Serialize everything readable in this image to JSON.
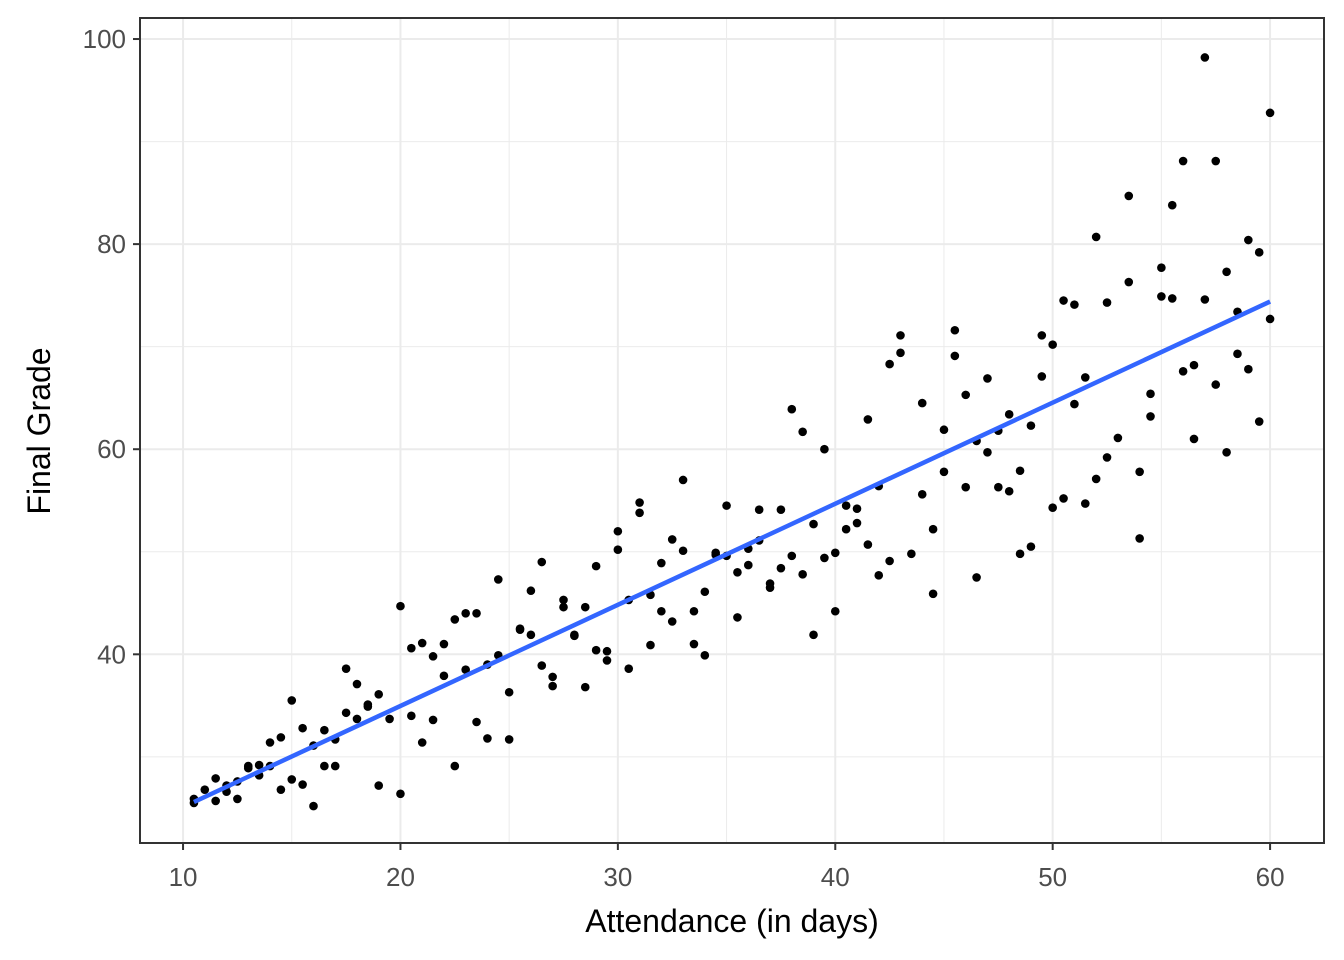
{
  "chart_data": {
    "type": "scatter",
    "title": "",
    "xlabel": "Attendance (in days)",
    "ylabel": "Final Grade",
    "xlim": [
      8.02,
      62.48
    ],
    "ylim": [
      21.6,
      102.05
    ],
    "x_ticks": [
      10,
      20,
      30,
      40,
      50,
      60
    ],
    "y_ticks": [
      40,
      60,
      80,
      100
    ],
    "x_tick_labels": [
      "10",
      "20",
      "30",
      "40",
      "50",
      "60"
    ],
    "y_tick_labels": [
      "40",
      "60",
      "80",
      "100"
    ],
    "grid": true,
    "legend": "none",
    "colors": {
      "points": "#000000",
      "fit_line": "#3366FF",
      "grid": "#EBEBEB",
      "border": "#333333"
    },
    "fit_line": {
      "type": "linear",
      "points": [
        [
          10.5,
          25.6
        ],
        [
          60,
          74.4
        ]
      ]
    },
    "points": [
      [
        10.5,
        25.9
      ],
      [
        10.5,
        25.5
      ],
      [
        11,
        26.8
      ],
      [
        11.5,
        27.9
      ],
      [
        11.5,
        25.7
      ],
      [
        12,
        27.2
      ],
      [
        12,
        26.6
      ],
      [
        12.5,
        27.6
      ],
      [
        12.5,
        25.9
      ],
      [
        13,
        29.1
      ],
      [
        13,
        28.9
      ],
      [
        13.5,
        29.2
      ],
      [
        13.5,
        28.2
      ],
      [
        14,
        31.4
      ],
      [
        14,
        29.1
      ],
      [
        14.5,
        31.9
      ],
      [
        14.5,
        26.8
      ],
      [
        15,
        35.5
      ],
      [
        15,
        27.8
      ],
      [
        15.5,
        32.8
      ],
      [
        15.5,
        27.3
      ],
      [
        16,
        31.1
      ],
      [
        16,
        25.2
      ],
      [
        16.5,
        32.6
      ],
      [
        16.5,
        29.1
      ],
      [
        17,
        31.7
      ],
      [
        17,
        29.1
      ],
      [
        17.5,
        38.6
      ],
      [
        17.5,
        34.3
      ],
      [
        18,
        37.1
      ],
      [
        18,
        33.7
      ],
      [
        18.5,
        35.1
      ],
      [
        18.5,
        34.9
      ],
      [
        19,
        36.1
      ],
      [
        19,
        27.2
      ],
      [
        19.5,
        33.7
      ],
      [
        20,
        44.7
      ],
      [
        20,
        26.4
      ],
      [
        20.5,
        40.6
      ],
      [
        20.5,
        34.0
      ],
      [
        21,
        41.1
      ],
      [
        21,
        31.4
      ],
      [
        21.5,
        39.8
      ],
      [
        21.5,
        33.6
      ],
      [
        22,
        41.0
      ],
      [
        22,
        37.9
      ],
      [
        22.5,
        43.4
      ],
      [
        22.5,
        29.1
      ],
      [
        23,
        44.0
      ],
      [
        23,
        38.5
      ],
      [
        23.5,
        44.0
      ],
      [
        23.5,
        33.4
      ],
      [
        24,
        39.0
      ],
      [
        24,
        31.8
      ],
      [
        24.5,
        47.3
      ],
      [
        24.5,
        39.9
      ],
      [
        25,
        36.3
      ],
      [
        25,
        31.7
      ],
      [
        25.5,
        42.4
      ],
      [
        25.5,
        42.5
      ],
      [
        26,
        46.2
      ],
      [
        26,
        41.9
      ],
      [
        26.5,
        49.0
      ],
      [
        26.5,
        38.9
      ],
      [
        27,
        37.8
      ],
      [
        27,
        36.9
      ],
      [
        27.5,
        45.3
      ],
      [
        27.5,
        44.6
      ],
      [
        28,
        41.9
      ],
      [
        28,
        41.8
      ],
      [
        28.5,
        44.6
      ],
      [
        28.5,
        36.8
      ],
      [
        29,
        48.6
      ],
      [
        29,
        40.4
      ],
      [
        29.5,
        40.3
      ],
      [
        29.5,
        39.4
      ],
      [
        30,
        52.0
      ],
      [
        30,
        50.2
      ],
      [
        30.5,
        45.3
      ],
      [
        30.5,
        38.6
      ],
      [
        31,
        54.8
      ],
      [
        31,
        53.8
      ],
      [
        31.5,
        45.8
      ],
      [
        31.5,
        40.9
      ],
      [
        32,
        48.9
      ],
      [
        32,
        44.2
      ],
      [
        32.5,
        51.2
      ],
      [
        32.5,
        43.2
      ],
      [
        33,
        57.0
      ],
      [
        33,
        50.1
      ],
      [
        33.5,
        44.2
      ],
      [
        33.5,
        41.0
      ],
      [
        34,
        46.1
      ],
      [
        34,
        39.9
      ],
      [
        34.5,
        49.9
      ],
      [
        34.5,
        49.7
      ],
      [
        35,
        54.5
      ],
      [
        35,
        49.6
      ],
      [
        35.5,
        43.6
      ],
      [
        35.5,
        48.0
      ],
      [
        36,
        50.3
      ],
      [
        36,
        48.7
      ],
      [
        36.5,
        54.1
      ],
      [
        36.5,
        51.1
      ],
      [
        37,
        46.9
      ],
      [
        37,
        46.5
      ],
      [
        37.5,
        54.1
      ],
      [
        37.5,
        48.4
      ],
      [
        38,
        63.9
      ],
      [
        38,
        49.6
      ],
      [
        38.5,
        61.7
      ],
      [
        38.5,
        47.8
      ],
      [
        39,
        52.7
      ],
      [
        39,
        41.9
      ],
      [
        39.5,
        60.0
      ],
      [
        39.5,
        49.4
      ],
      [
        40,
        49.9
      ],
      [
        40,
        44.2
      ],
      [
        40.5,
        54.5
      ],
      [
        40.5,
        52.2
      ],
      [
        41,
        54.2
      ],
      [
        41,
        52.8
      ],
      [
        41.5,
        62.9
      ],
      [
        41.5,
        50.7
      ],
      [
        42,
        56.4
      ],
      [
        42,
        47.7
      ],
      [
        42.5,
        68.3
      ],
      [
        42.5,
        49.1
      ],
      [
        43,
        71.1
      ],
      [
        43,
        69.4
      ],
      [
        43.5,
        49.8
      ],
      [
        44,
        64.5
      ],
      [
        44,
        55.6
      ],
      [
        44.5,
        52.2
      ],
      [
        44.5,
        45.9
      ],
      [
        45,
        61.9
      ],
      [
        45,
        57.8
      ],
      [
        45.5,
        71.6
      ],
      [
        45.5,
        69.1
      ],
      [
        46,
        65.3
      ],
      [
        46,
        56.3
      ],
      [
        46.5,
        60.8
      ],
      [
        46.5,
        47.5
      ],
      [
        47,
        66.9
      ],
      [
        47,
        59.7
      ],
      [
        47.5,
        61.8
      ],
      [
        47.5,
        56.3
      ],
      [
        48,
        63.4
      ],
      [
        48,
        55.9
      ],
      [
        48.5,
        57.9
      ],
      [
        48.5,
        49.8
      ],
      [
        49,
        62.3
      ],
      [
        49,
        50.5
      ],
      [
        49.5,
        71.1
      ],
      [
        49.5,
        67.1
      ],
      [
        50,
        70.2
      ],
      [
        50,
        54.3
      ],
      [
        50.5,
        74.5
      ],
      [
        50.5,
        55.2
      ],
      [
        51,
        74.1
      ],
      [
        51,
        64.4
      ],
      [
        51.5,
        67.0
      ],
      [
        51.5,
        54.7
      ],
      [
        52,
        80.7
      ],
      [
        52,
        57.1
      ],
      [
        52.5,
        74.3
      ],
      [
        52.5,
        59.2
      ],
      [
        53,
        61.1
      ],
      [
        53.5,
        84.7
      ],
      [
        53.5,
        76.3
      ],
      [
        54,
        57.8
      ],
      [
        54,
        51.3
      ],
      [
        54.5,
        65.4
      ],
      [
        54.5,
        63.2
      ],
      [
        55,
        77.7
      ],
      [
        55,
        74.9
      ],
      [
        55.5,
        83.8
      ],
      [
        55.5,
        74.7
      ],
      [
        56,
        88.1
      ],
      [
        56,
        67.6
      ],
      [
        56.5,
        68.2
      ],
      [
        56.5,
        61.0
      ],
      [
        57,
        98.2
      ],
      [
        57,
        74.6
      ],
      [
        57.5,
        88.1
      ],
      [
        57.5,
        66.3
      ],
      [
        58,
        77.3
      ],
      [
        58,
        59.7
      ],
      [
        58.5,
        73.4
      ],
      [
        58.5,
        69.3
      ],
      [
        59,
        80.4
      ],
      [
        59,
        67.8
      ],
      [
        59.5,
        79.2
      ],
      [
        59.5,
        62.7
      ],
      [
        60,
        92.8
      ],
      [
        60,
        72.7
      ]
    ]
  }
}
